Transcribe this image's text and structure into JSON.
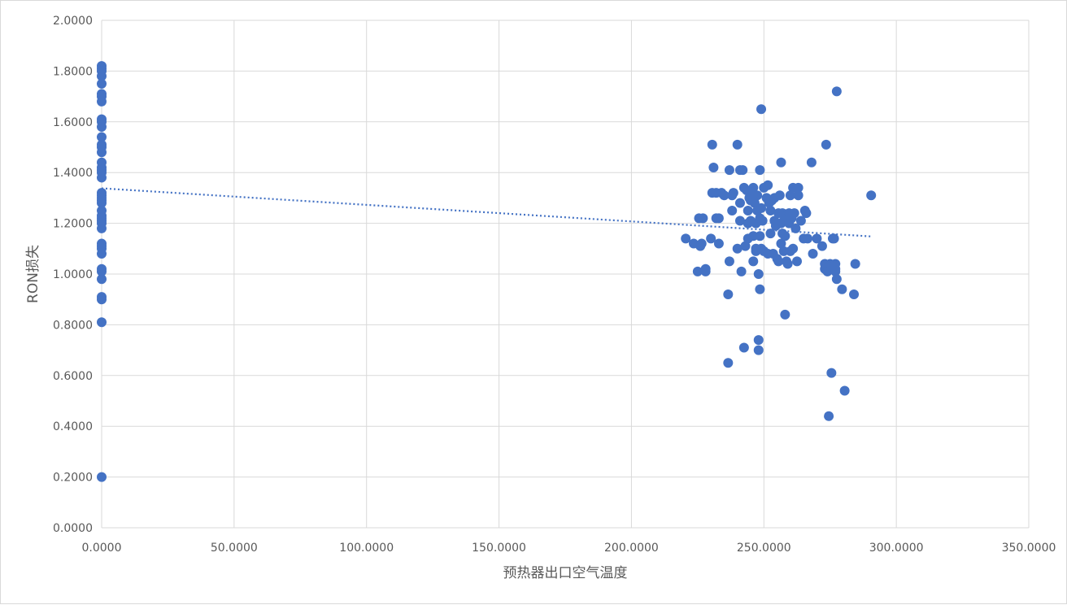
{
  "chart_data": {
    "type": "scatter",
    "title": "",
    "xlabel": "预热器出口空气温度",
    "ylabel": "RON损失",
    "xlim": [
      0,
      350
    ],
    "ylim": [
      0,
      2
    ],
    "x_ticks": [
      "0.0000",
      "50.0000",
      "100.0000",
      "150.0000",
      "200.0000",
      "250.0000",
      "300.0000",
      "350.0000"
    ],
    "y_ticks": [
      "0.0000",
      "0.2000",
      "0.4000",
      "0.6000",
      "0.8000",
      "1.0000",
      "1.2000",
      "1.4000",
      "1.6000",
      "1.8000",
      "2.0000"
    ],
    "grid": true,
    "legend": "none",
    "marker_color": "#4472C4",
    "trendline": {
      "type": "linear",
      "style": "dotted",
      "color": "#4472C4",
      "x": [
        0,
        290.8
      ],
      "y": [
        1.338,
        1.148
      ]
    },
    "series": [
      {
        "points": [
          [
            0,
            1.82
          ],
          [
            0,
            1.81
          ],
          [
            0,
            1.8
          ],
          [
            0,
            1.78
          ],
          [
            0,
            1.75
          ],
          [
            0,
            1.71
          ],
          [
            0,
            1.7
          ],
          [
            0,
            1.68
          ],
          [
            0,
            1.61
          ],
          [
            0,
            1.6
          ],
          [
            0,
            1.58
          ],
          [
            0,
            1.54
          ],
          [
            0,
            1.51
          ],
          [
            0,
            1.5
          ],
          [
            0,
            1.48
          ],
          [
            0,
            1.44
          ],
          [
            0,
            1.42
          ],
          [
            0,
            1.41
          ],
          [
            0,
            1.4
          ],
          [
            0,
            1.38
          ],
          [
            0,
            1.32
          ],
          [
            0,
            1.31
          ],
          [
            0,
            1.3
          ],
          [
            0,
            1.29
          ],
          [
            0,
            1.28
          ],
          [
            0,
            1.25
          ],
          [
            0,
            1.23
          ],
          [
            0,
            1.22
          ],
          [
            0,
            1.21
          ],
          [
            0,
            1.2
          ],
          [
            0,
            1.18
          ],
          [
            0,
            1.12
          ],
          [
            0,
            1.11
          ],
          [
            0,
            1.1
          ],
          [
            0,
            1.08
          ],
          [
            0,
            1.02
          ],
          [
            0,
            1.01
          ],
          [
            0,
            0.98
          ],
          [
            0,
            0.91
          ],
          [
            0,
            0.9
          ],
          [
            0,
            0.81
          ],
          [
            0,
            0.2
          ],
          [
            220.5,
            1.14
          ],
          [
            223.5,
            1.12
          ],
          [
            225,
            1.01
          ],
          [
            225.5,
            1.22
          ],
          [
            226,
            1.11
          ],
          [
            226.5,
            1.12
          ],
          [
            227,
            1.22
          ],
          [
            228,
            1.01
          ],
          [
            228,
            1.02
          ],
          [
            230,
            1.14
          ],
          [
            230.5,
            1.32
          ],
          [
            230.5,
            1.51
          ],
          [
            231,
            1.42
          ],
          [
            232,
            1.32
          ],
          [
            232,
            1.22
          ],
          [
            233,
            1.22
          ],
          [
            233,
            1.12
          ],
          [
            234,
            1.32
          ],
          [
            235,
            1.31
          ],
          [
            236.5,
            0.92
          ],
          [
            236.5,
            0.65
          ],
          [
            237,
            1.05
          ],
          [
            237,
            1.41
          ],
          [
            238,
            1.25
          ],
          [
            238,
            1.31
          ],
          [
            238.5,
            1.32
          ],
          [
            240,
            1.51
          ],
          [
            240,
            1.1
          ],
          [
            241,
            1.28
          ],
          [
            241,
            1.41
          ],
          [
            241,
            1.21
          ],
          [
            241.5,
            1.01
          ],
          [
            242,
            1.41
          ],
          [
            242.5,
            1.34
          ],
          [
            242.5,
            0.71
          ],
          [
            243,
            1.11
          ],
          [
            243.5,
            1.33
          ],
          [
            244,
            1.2
          ],
          [
            244,
            1.25
          ],
          [
            244,
            1.14
          ],
          [
            244.5,
            1.3
          ],
          [
            245,
            1.29
          ],
          [
            245,
            1.21
          ],
          [
            245.5,
            1.33
          ],
          [
            246,
            1.34
          ],
          [
            246,
            1.15
          ],
          [
            246,
            1.05
          ],
          [
            246.5,
            1.28
          ],
          [
            247,
            1.2
          ],
          [
            247,
            1.09
          ],
          [
            247,
            1.1
          ],
          [
            247.5,
            1.25
          ],
          [
            247.5,
            1.31
          ],
          [
            248,
            1.0
          ],
          [
            248,
            0.74
          ],
          [
            248,
            0.7
          ],
          [
            248.5,
            1.15
          ],
          [
            248.5,
            1.22
          ],
          [
            248.5,
            1.41
          ],
          [
            248.5,
            0.94
          ],
          [
            249,
            1.65
          ],
          [
            249,
            1.26
          ],
          [
            249,
            1.1
          ],
          [
            249.5,
            1.21
          ],
          [
            250,
            1.34
          ],
          [
            250,
            1.09
          ],
          [
            251,
            1.3
          ],
          [
            251.5,
            1.08
          ],
          [
            251.5,
            1.35
          ],
          [
            252,
            1.28
          ],
          [
            252.5,
            1.16
          ],
          [
            252.5,
            1.25
          ],
          [
            253,
            1.29
          ],
          [
            253.5,
            1.08
          ],
          [
            254,
            1.3
          ],
          [
            254,
            1.21
          ],
          [
            254.5,
            1.19
          ],
          [
            255,
            1.06
          ],
          [
            255.5,
            1.24
          ],
          [
            255.5,
            1.05
          ],
          [
            256,
            1.31
          ],
          [
            256.5,
            1.44
          ],
          [
            256.5,
            1.12
          ],
          [
            256.5,
            1.2
          ],
          [
            257,
            1.16
          ],
          [
            257,
            1.24
          ],
          [
            257.5,
            1.21
          ],
          [
            257.5,
            1.09
          ],
          [
            258,
            0.84
          ],
          [
            258,
            1.15
          ],
          [
            258.5,
            1.23
          ],
          [
            258.5,
            1.05
          ],
          [
            259,
            1.04
          ],
          [
            259.5,
            1.24
          ],
          [
            259.5,
            1.2
          ],
          [
            260,
            1.31
          ],
          [
            260,
            1.09
          ],
          [
            260.5,
            1.22
          ],
          [
            261,
            1.34
          ],
          [
            261,
            1.1
          ],
          [
            261.5,
            1.24
          ],
          [
            262,
            1.18
          ],
          [
            262.5,
            1.05
          ],
          [
            263,
            1.34
          ],
          [
            263,
            1.31
          ],
          [
            264,
            1.21
          ],
          [
            265,
            1.14
          ],
          [
            265.5,
            1.25
          ],
          [
            266,
            1.24
          ],
          [
            266.5,
            1.14
          ],
          [
            268,
            1.44
          ],
          [
            268.5,
            1.08
          ],
          [
            270,
            1.14
          ],
          [
            272,
            1.11
          ],
          [
            273,
            1.04
          ],
          [
            273,
            1.02
          ],
          [
            273.5,
            1.51
          ],
          [
            274,
            1.01
          ],
          [
            274.5,
            0.44
          ],
          [
            275,
            1.04
          ],
          [
            275.5,
            0.61
          ],
          [
            275.5,
            1.03
          ],
          [
            276,
            1.14
          ],
          [
            276.5,
            1.14
          ],
          [
            277,
            1.04
          ],
          [
            277,
            1.01
          ],
          [
            277,
            1.02
          ],
          [
            277.5,
            1.72
          ],
          [
            277.5,
            0.98
          ],
          [
            279.5,
            0.94
          ],
          [
            280.5,
            0.54
          ],
          [
            284,
            0.92
          ],
          [
            284.5,
            1.04
          ],
          [
            290.5,
            1.31
          ]
        ]
      }
    ]
  }
}
